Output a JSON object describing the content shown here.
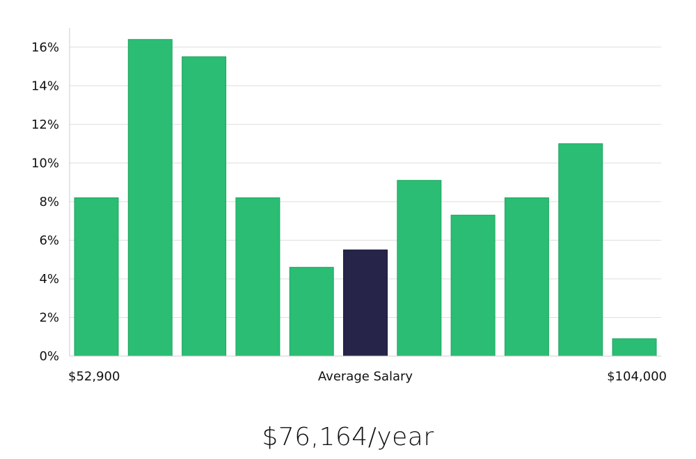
{
  "chart_data": {
    "type": "bar",
    "title": "",
    "ylabel": "",
    "xlabel": "Average Salary",
    "x_range_labels": {
      "min": "$52,900",
      "center": "Average Salary",
      "max": "$104,000"
    },
    "ylim": [
      0,
      17
    ],
    "y_ticks": [
      0,
      2,
      4,
      6,
      8,
      10,
      12,
      14,
      16
    ],
    "y_tick_labels": [
      "0%",
      "2%",
      "4%",
      "6%",
      "8%",
      "10%",
      "12%",
      "14%",
      "16%"
    ],
    "values": [
      8.2,
      16.4,
      15.5,
      8.2,
      4.6,
      5.5,
      9.1,
      7.3,
      8.2,
      11.0,
      0.9
    ],
    "highlight_index": 5,
    "grid": true
  },
  "colors": {
    "bar": "#2abd73",
    "bar_stroke": "#22a663",
    "highlight": "#27244a",
    "grid": "#dddddd",
    "axis": "#cccccc"
  },
  "summary": {
    "average_salary_label": "$76,164/year"
  }
}
